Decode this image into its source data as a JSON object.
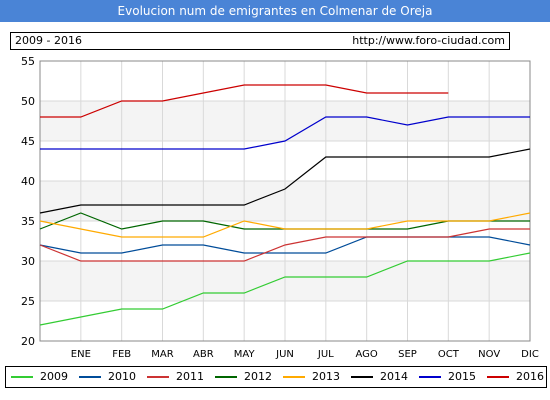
{
  "chart_data": {
    "type": "line",
    "title": "Evolucion num de emigrantes en Colmenar de Oreja",
    "subtitle_left": "2009 - 2016",
    "subtitle_right": "http://www.foro-ciudad.com",
    "categories": [
      "",
      "ENE",
      "FEB",
      "MAR",
      "ABR",
      "MAY",
      "JUN",
      "JUL",
      "AGO",
      "SEP",
      "OCT",
      "NOV",
      "DIC"
    ],
    "ylim": [
      20,
      55
    ],
    "yticks": [
      20,
      25,
      30,
      35,
      40,
      45,
      50,
      55
    ],
    "grid": true,
    "legend_position": "bottom",
    "series": [
      {
        "name": "2009",
        "color": "#33cc33",
        "values": [
          22,
          23,
          24,
          24,
          26,
          26,
          28,
          28,
          28,
          30,
          30,
          30,
          31
        ]
      },
      {
        "name": "2010",
        "color": "#004c99",
        "values": [
          32,
          31,
          31,
          32,
          32,
          31,
          31,
          31,
          33,
          33,
          33,
          33,
          32
        ]
      },
      {
        "name": "2011",
        "color": "#cc3333",
        "values": [
          32,
          30,
          30,
          30,
          30,
          30,
          32,
          33,
          33,
          33,
          33,
          34,
          34
        ]
      },
      {
        "name": "2012",
        "color": "#006600",
        "values": [
          34,
          36,
          34,
          35,
          35,
          34,
          34,
          34,
          34,
          34,
          35,
          35,
          35
        ]
      },
      {
        "name": "2013",
        "color": "#ffaa00",
        "values": [
          35,
          34,
          33,
          33,
          33,
          35,
          34,
          34,
          34,
          35,
          35,
          35,
          36
        ]
      },
      {
        "name": "2014",
        "color": "#000000",
        "values": [
          36,
          37,
          37,
          37,
          37,
          37,
          39,
          43,
          43,
          43,
          43,
          43,
          44
        ]
      },
      {
        "name": "2015",
        "color": "#0000cc",
        "values": [
          44,
          44,
          44,
          44,
          44,
          44,
          45,
          48,
          48,
          47,
          48,
          48,
          48
        ]
      },
      {
        "name": "2016",
        "color": "#cc0000",
        "values": [
          48,
          48,
          50,
          50,
          51,
          52,
          52,
          52,
          51,
          51,
          51,
          null,
          null
        ]
      }
    ]
  }
}
